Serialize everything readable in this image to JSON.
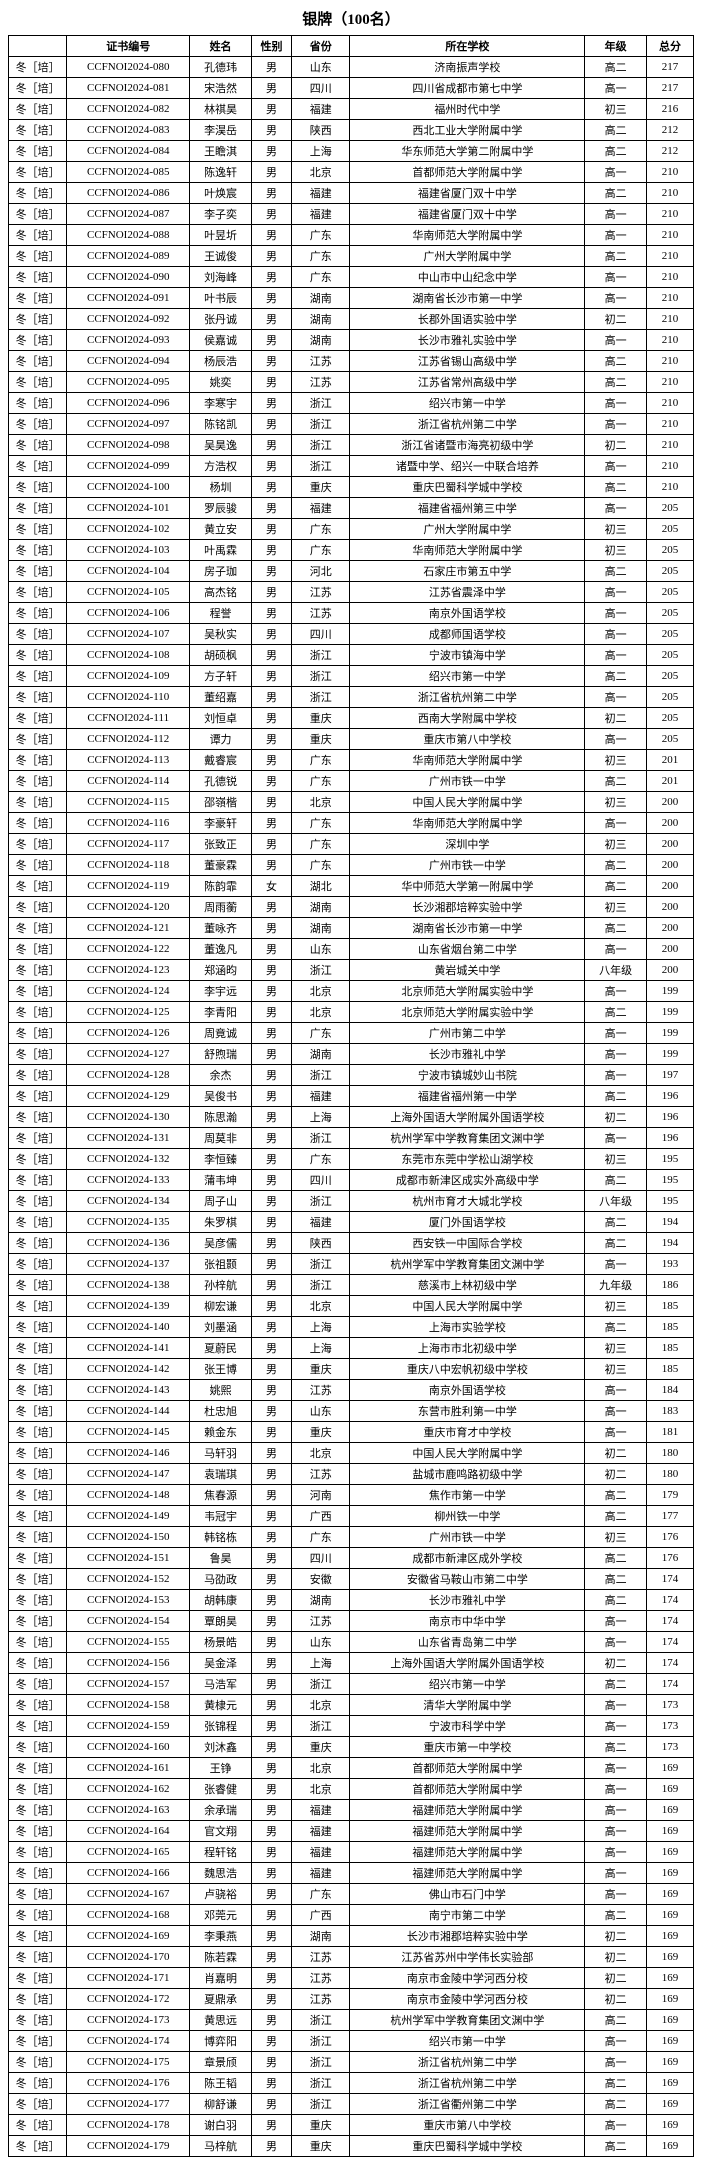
{
  "title": "银牌（100名）",
  "columns": [
    "",
    "证书编号",
    "姓名",
    "性别",
    "省份",
    "所在学校",
    "年级",
    "总分"
  ],
  "rowPrefix": "冬［培］",
  "rows": [
    [
      "CCFNOI2024-080",
      "孔德玮",
      "男",
      "山东",
      "济南振声学校",
      "高二",
      "217"
    ],
    [
      "CCFNOI2024-081",
      "宋浩然",
      "男",
      "四川",
      "四川省成都市第七中学",
      "高一",
      "217"
    ],
    [
      "CCFNOI2024-082",
      "林祺昊",
      "男",
      "福建",
      "福州时代中学",
      "初三",
      "216"
    ],
    [
      "CCFNOI2024-083",
      "李淏岳",
      "男",
      "陕西",
      "西北工业大学附属中学",
      "高二",
      "212"
    ],
    [
      "CCFNOI2024-084",
      "王瞻淇",
      "男",
      "上海",
      "华东师范大学第二附属中学",
      "高二",
      "212"
    ],
    [
      "CCFNOI2024-085",
      "陈逸轩",
      "男",
      "北京",
      "首都师范大学附属中学",
      "高一",
      "210"
    ],
    [
      "CCFNOI2024-086",
      "叶焕宸",
      "男",
      "福建",
      "福建省厦门双十中学",
      "高二",
      "210"
    ],
    [
      "CCFNOI2024-087",
      "李子奕",
      "男",
      "福建",
      "福建省厦门双十中学",
      "高一",
      "210"
    ],
    [
      "CCFNOI2024-088",
      "叶昱圻",
      "男",
      "广东",
      "华南师范大学附属中学",
      "高一",
      "210"
    ],
    [
      "CCFNOI2024-089",
      "王诚俊",
      "男",
      "广东",
      "广州大学附属中学",
      "高二",
      "210"
    ],
    [
      "CCFNOI2024-090",
      "刘海峰",
      "男",
      "广东",
      "中山市中山纪念中学",
      "高一",
      "210"
    ],
    [
      "CCFNOI2024-091",
      "叶书辰",
      "男",
      "湖南",
      "湖南省长沙市第一中学",
      "高一",
      "210"
    ],
    [
      "CCFNOI2024-092",
      "张丹诚",
      "男",
      "湖南",
      "长郡外国语实验中学",
      "初二",
      "210"
    ],
    [
      "CCFNOI2024-093",
      "侯嘉诚",
      "男",
      "湖南",
      "长沙市雅礼实验中学",
      "高一",
      "210"
    ],
    [
      "CCFNOI2024-094",
      "杨辰浩",
      "男",
      "江苏",
      "江苏省锡山高级中学",
      "高二",
      "210"
    ],
    [
      "CCFNOI2024-095",
      "姚奕",
      "男",
      "江苏",
      "江苏省常州高级中学",
      "高二",
      "210"
    ],
    [
      "CCFNOI2024-096",
      "李寒宇",
      "男",
      "浙江",
      "绍兴市第一中学",
      "高一",
      "210"
    ],
    [
      "CCFNOI2024-097",
      "陈铭凯",
      "男",
      "浙江",
      "浙江省杭州第二中学",
      "高一",
      "210"
    ],
    [
      "CCFNOI2024-098",
      "吴昊逸",
      "男",
      "浙江",
      "浙江省诸暨市海亮初级中学",
      "初二",
      "210"
    ],
    [
      "CCFNOI2024-099",
      "方浩权",
      "男",
      "浙江",
      "诸暨中学、绍兴一中联合培养",
      "高一",
      "210"
    ],
    [
      "CCFNOI2024-100",
      "杨圳",
      "男",
      "重庆",
      "重庆巴蜀科学城中学校",
      "高二",
      "210"
    ],
    [
      "CCFNOI2024-101",
      "罗辰骏",
      "男",
      "福建",
      "福建省福州第三中学",
      "高一",
      "205"
    ],
    [
      "CCFNOI2024-102",
      "黄立安",
      "男",
      "广东",
      "广州大学附属中学",
      "初三",
      "205"
    ],
    [
      "CCFNOI2024-103",
      "叶禹霖",
      "男",
      "广东",
      "华南师范大学附属中学",
      "初三",
      "205"
    ],
    [
      "CCFNOI2024-104",
      "房子珈",
      "男",
      "河北",
      "石家庄市第五中学",
      "高二",
      "205"
    ],
    [
      "CCFNOI2024-105",
      "高杰铭",
      "男",
      "江苏",
      "江苏省震泽中学",
      "高一",
      "205"
    ],
    [
      "CCFNOI2024-106",
      "程誉",
      "男",
      "江苏",
      "南京外国语学校",
      "高一",
      "205"
    ],
    [
      "CCFNOI2024-107",
      "吴秋实",
      "男",
      "四川",
      "成都师国语学校",
      "高一",
      "205"
    ],
    [
      "CCFNOI2024-108",
      "胡硕枫",
      "男",
      "浙江",
      "宁波市镇海中学",
      "高一",
      "205"
    ],
    [
      "CCFNOI2024-109",
      "方子轩",
      "男",
      "浙江",
      "绍兴市第一中学",
      "高二",
      "205"
    ],
    [
      "CCFNOI2024-110",
      "董绍嘉",
      "男",
      "浙江",
      "浙江省杭州第二中学",
      "高一",
      "205"
    ],
    [
      "CCFNOI2024-111",
      "刘恒卓",
      "男",
      "重庆",
      "西南大学附属中学校",
      "初二",
      "205"
    ],
    [
      "CCFNOI2024-112",
      "谭力",
      "男",
      "重庆",
      "重庆市第八中学校",
      "高一",
      "205"
    ],
    [
      "CCFNOI2024-113",
      "戴睿宸",
      "男",
      "广东",
      "华南师范大学附属中学",
      "初三",
      "201"
    ],
    [
      "CCFNOI2024-114",
      "孔德锐",
      "男",
      "广东",
      "广州市铁一中学",
      "高二",
      "201"
    ],
    [
      "CCFNOI2024-115",
      "邵嶺楷",
      "男",
      "北京",
      "中国人民大学附属中学",
      "初三",
      "200"
    ],
    [
      "CCFNOI2024-116",
      "李豪轩",
      "男",
      "广东",
      "华南师范大学附属中学",
      "高一",
      "200"
    ],
    [
      "CCFNOI2024-117",
      "张致正",
      "男",
      "广东",
      "深圳中学",
      "初三",
      "200"
    ],
    [
      "CCFNOI2024-118",
      "董豪霖",
      "男",
      "广东",
      "广州市铁一中学",
      "高二",
      "200"
    ],
    [
      "CCFNOI2024-119",
      "陈韵霏",
      "女",
      "湖北",
      "华中师范大学第一附属中学",
      "高二",
      "200"
    ],
    [
      "CCFNOI2024-120",
      "周雨蘅",
      "男",
      "湖南",
      "长沙湘郡培粹实验中学",
      "初三",
      "200"
    ],
    [
      "CCFNOI2024-121",
      "董咏齐",
      "男",
      "湖南",
      "湖南省长沙市第一中学",
      "高二",
      "200"
    ],
    [
      "CCFNOI2024-122",
      "董逸凡",
      "男",
      "山东",
      "山东省烟台第二中学",
      "高一",
      "200"
    ],
    [
      "CCFNOI2024-123",
      "郑涵昀",
      "男",
      "浙江",
      "黄岩城关中学",
      "八年级",
      "200"
    ],
    [
      "CCFNOI2024-124",
      "李宇远",
      "男",
      "北京",
      "北京师范大学附属实验中学",
      "高一",
      "199"
    ],
    [
      "CCFNOI2024-125",
      "李青阳",
      "男",
      "北京",
      "北京师范大学附属实验中学",
      "高二",
      "199"
    ],
    [
      "CCFNOI2024-126",
      "周竟诚",
      "男",
      "广东",
      "广州市第二中学",
      "高一",
      "199"
    ],
    [
      "CCFNOI2024-127",
      "舒煦瑞",
      "男",
      "湖南",
      "长沙市雅礼中学",
      "高一",
      "199"
    ],
    [
      "CCFNOI2024-128",
      "余杰",
      "男",
      "浙江",
      "宁波市镇城妙山书院",
      "高一",
      "197"
    ],
    [
      "CCFNOI2024-129",
      "吴俊书",
      "男",
      "福建",
      "福建省福州第一中学",
      "高二",
      "196"
    ],
    [
      "CCFNOI2024-130",
      "陈思瀚",
      "男",
      "上海",
      "上海外国语大学附属外国语学校",
      "初二",
      "196"
    ],
    [
      "CCFNOI2024-131",
      "周莫非",
      "男",
      "浙江",
      "杭州学军中学教育集团文渊中学",
      "高一",
      "196"
    ],
    [
      "CCFNOI2024-132",
      "李恒臻",
      "男",
      "广东",
      "东莞市东莞中学松山湖学校",
      "初三",
      "195"
    ],
    [
      "CCFNOI2024-133",
      "蒲韦坤",
      "男",
      "四川",
      "成都市新津区成实外高级中学",
      "高二",
      "195"
    ],
    [
      "CCFNOI2024-134",
      "周子山",
      "男",
      "浙江",
      "杭州市育才大城北学校",
      "八年级",
      "195"
    ],
    [
      "CCFNOI2024-135",
      "朱罗棋",
      "男",
      "福建",
      "厦门外国语学校",
      "高二",
      "194"
    ],
    [
      "CCFNOI2024-136",
      "吴彦儒",
      "男",
      "陕西",
      "西安铁一中国际合学校",
      "高二",
      "194"
    ],
    [
      "CCFNOI2024-137",
      "张祖颢",
      "男",
      "浙江",
      "杭州学军中学教育集团文渊中学",
      "高一",
      "193"
    ],
    [
      "CCFNOI2024-138",
      "孙梓航",
      "男",
      "浙江",
      "慈溪市上林初级中学",
      "九年级",
      "186"
    ],
    [
      "CCFNOI2024-139",
      "柳宏谦",
      "男",
      "北京",
      "中国人民大学附属中学",
      "初三",
      "185"
    ],
    [
      "CCFNOI2024-140",
      "刘墨涵",
      "男",
      "上海",
      "上海市实验学校",
      "高二",
      "185"
    ],
    [
      "CCFNOI2024-141",
      "夏蔚民",
      "男",
      "上海",
      "上海市市北初级中学",
      "初三",
      "185"
    ],
    [
      "CCFNOI2024-142",
      "张王博",
      "男",
      "重庆",
      "重庆八中宏帆初级中学校",
      "初三",
      "185"
    ],
    [
      "CCFNOI2024-143",
      "姚熙",
      "男",
      "江苏",
      "南京外国语学校",
      "高一",
      "184"
    ],
    [
      "CCFNOI2024-144",
      "杜忠旭",
      "男",
      "山东",
      "东营市胜利第一中学",
      "高一",
      "183"
    ],
    [
      "CCFNOI2024-145",
      "赖金东",
      "男",
      "重庆",
      "重庆市育才中学校",
      "高一",
      "181"
    ],
    [
      "CCFNOI2024-146",
      "马轩羽",
      "男",
      "北京",
      "中国人民大学附属中学",
      "初二",
      "180"
    ],
    [
      "CCFNOI2024-147",
      "袁瑞琪",
      "男",
      "江苏",
      "盐城市鹿鸣路初级中学",
      "初二",
      "180"
    ],
    [
      "CCFNOI2024-148",
      "焦春源",
      "男",
      "河南",
      "焦作市第一中学",
      "高二",
      "179"
    ],
    [
      "CCFNOI2024-149",
      "韦冠宇",
      "男",
      "广西",
      "柳州铁一中学",
      "高二",
      "177"
    ],
    [
      "CCFNOI2024-150",
      "韩铭栋",
      "男",
      "广东",
      "广州市铁一中学",
      "初三",
      "176"
    ],
    [
      "CCFNOI2024-151",
      "鲁昊",
      "男",
      "四川",
      "成都市新津区成外学校",
      "高二",
      "176"
    ],
    [
      "CCFNOI2024-152",
      "马劭政",
      "男",
      "安徽",
      "安徽省马鞍山市第二中学",
      "高二",
      "174"
    ],
    [
      "CCFNOI2024-153",
      "胡韩康",
      "男",
      "湖南",
      "长沙市雅礼中学",
      "高二",
      "174"
    ],
    [
      "CCFNOI2024-154",
      "覃朗昊",
      "男",
      "江苏",
      "南京市中华中学",
      "高一",
      "174"
    ],
    [
      "CCFNOI2024-155",
      "杨景皓",
      "男",
      "山东",
      "山东省青岛第二中学",
      "高一",
      "174"
    ],
    [
      "CCFNOI2024-156",
      "吴金泽",
      "男",
      "上海",
      "上海外国语大学附属外国语学校",
      "初二",
      "174"
    ],
    [
      "CCFNOI2024-157",
      "马浩军",
      "男",
      "浙江",
      "绍兴市第一中学",
      "高二",
      "174"
    ],
    [
      "CCFNOI2024-158",
      "黄棣元",
      "男",
      "北京",
      "清华大学附属中学",
      "高一",
      "173"
    ],
    [
      "CCFNOI2024-159",
      "张锦程",
      "男",
      "浙江",
      "宁波市科学中学",
      "高一",
      "173"
    ],
    [
      "CCFNOI2024-160",
      "刘沐鑫",
      "男",
      "重庆",
      "重庆市第一中学校",
      "高二",
      "173"
    ],
    [
      "CCFNOI2024-161",
      "王铮",
      "男",
      "北京",
      "首都师范大学附属中学",
      "高一",
      "169"
    ],
    [
      "CCFNOI2024-162",
      "张睿健",
      "男",
      "北京",
      "首都师范大学附属中学",
      "高一",
      "169"
    ],
    [
      "CCFNOI2024-163",
      "余承瑞",
      "男",
      "福建",
      "福建师范大学附属中学",
      "高一",
      "169"
    ],
    [
      "CCFNOI2024-164",
      "官文翔",
      "男",
      "福建",
      "福建师范大学附属中学",
      "高一",
      "169"
    ],
    [
      "CCFNOI2024-165",
      "程轩铭",
      "男",
      "福建",
      "福建师范大学附属中学",
      "高一",
      "169"
    ],
    [
      "CCFNOI2024-166",
      "魏思浩",
      "男",
      "福建",
      "福建师范大学附属中学",
      "高一",
      "169"
    ],
    [
      "CCFNOI2024-167",
      "卢骁裕",
      "男",
      "广东",
      "佛山市石门中学",
      "高一",
      "169"
    ],
    [
      "CCFNOI2024-168",
      "邓莞元",
      "男",
      "广西",
      "南宁市第二中学",
      "高二",
      "169"
    ],
    [
      "CCFNOI2024-169",
      "李秉燕",
      "男",
      "湖南",
      "长沙市湘郡培粹实验中学",
      "初二",
      "169"
    ],
    [
      "CCFNOI2024-170",
      "陈若霖",
      "男",
      "江苏",
      "江苏省苏州中学伟长实验部",
      "初二",
      "169"
    ],
    [
      "CCFNOI2024-171",
      "肖嘉明",
      "男",
      "江苏",
      "南京市金陵中学河西分校",
      "初二",
      "169"
    ],
    [
      "CCFNOI2024-172",
      "夏鼎承",
      "男",
      "江苏",
      "南京市金陵中学河西分校",
      "初二",
      "169"
    ],
    [
      "CCFNOI2024-173",
      "黄思远",
      "男",
      "浙江",
      "杭州学军中学教育集团文渊中学",
      "高二",
      "169"
    ],
    [
      "CCFNOI2024-174",
      "博弈阳",
      "男",
      "浙江",
      "绍兴市第一中学",
      "高一",
      "169"
    ],
    [
      "CCFNOI2024-175",
      "章景颀",
      "男",
      "浙江",
      "浙江省杭州第二中学",
      "高一",
      "169"
    ],
    [
      "CCFNOI2024-176",
      "陈王韬",
      "男",
      "浙江",
      "浙江省杭州第二中学",
      "高二",
      "169"
    ],
    [
      "CCFNOI2024-177",
      "柳舒谦",
      "男",
      "浙江",
      "浙江省衢州第二中学",
      "高二",
      "169"
    ],
    [
      "CCFNOI2024-178",
      "谢白羽",
      "男",
      "重庆",
      "重庆市第八中学校",
      "高一",
      "169"
    ],
    [
      "CCFNOI2024-179",
      "马梓航",
      "男",
      "重庆",
      "重庆巴蜀科学城中学校",
      "高二",
      "169"
    ]
  ]
}
